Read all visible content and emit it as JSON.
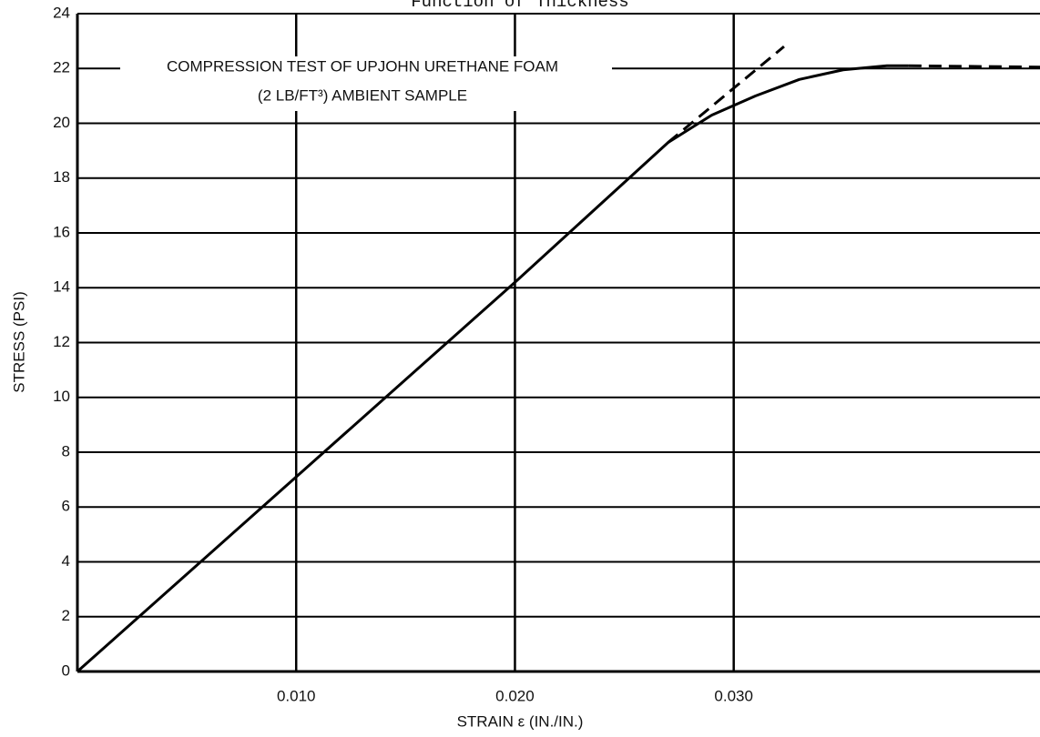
{
  "chart_data": {
    "type": "line",
    "title": "Function of Thickness",
    "annotations": [
      "COMPRESSION TEST OF UPJOHN URETHANE FOAM",
      "(2 LB/FT³) AMBIENT SAMPLE"
    ],
    "x_label": "STRAIN ε (IN./IN.)",
    "y_label": "STRESS (PSI)",
    "xlim": [
      0,
      0.044
    ],
    "ylim": [
      0,
      24
    ],
    "xticks": [
      {
        "value": 0.01,
        "label": "0.010"
      },
      {
        "value": 0.02,
        "label": "0.020"
      },
      {
        "value": 0.03,
        "label": "0.030"
      }
    ],
    "yticks": [
      0,
      2,
      4,
      6,
      8,
      10,
      12,
      14,
      16,
      18,
      20,
      22,
      24
    ],
    "grid": true,
    "series": [
      {
        "color": "#000000",
        "dashed": false,
        "x": [
          0,
          0.01,
          0.02,
          0.027,
          0.029,
          0.031,
          0.033,
          0.035,
          0.037,
          0.038
        ],
        "values": [
          0,
          7.1,
          14.2,
          19.3,
          20.3,
          21.0,
          21.6,
          21.95,
          22.1,
          22.1
        ]
      },
      {
        "color": "#000000",
        "dashed": true,
        "x": [
          0.027,
          0.0323
        ],
        "values": [
          19.3,
          22.8
        ]
      },
      {
        "color": "#000000",
        "dashed": true,
        "x": [
          0.038,
          0.044
        ],
        "values": [
          22.1,
          22.05
        ]
      }
    ]
  }
}
